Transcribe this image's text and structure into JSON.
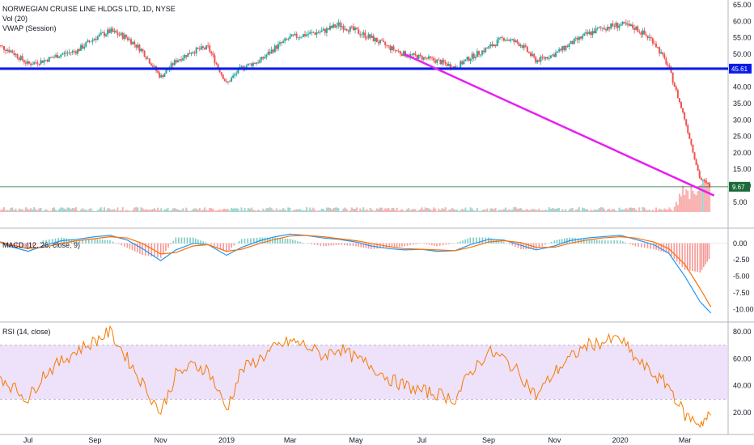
{
  "price_panel": {
    "title": "NORWEGIAN CRUISE LINE HLDGS LTD, 1D, NYSE",
    "vol_label": "Vol (20)",
    "vwap_label": "VWAP (Session)",
    "level_badge": "45.61",
    "last_badge": "9.67"
  },
  "macd_panel": {
    "label": "MACD (12, 26, close, 9)"
  },
  "rsi_panel": {
    "label": "RSI (14, close)"
  },
  "colors": {
    "up": "#26a69a",
    "down": "#ef5350",
    "hline": "#0a1ae6",
    "trendline": "#e91ef2",
    "macd": "#2196f3",
    "signal": "#ff6d00",
    "rsi": "#f57c00",
    "rsi_band": "#e7d4f8",
    "last_line": "#1b6b3a"
  },
  "chart_data": [
    {
      "type": "candlestick",
      "title": "NORWEGIAN CRUISE LINE HLDGS LTD, 1D, NYSE",
      "x_ticks": [
        "Jul",
        "Sep",
        "Nov",
        "2019",
        "Mar",
        "May",
        "Jul",
        "Sep",
        "Nov",
        "2020",
        "Mar"
      ],
      "y_ticks": [
        5,
        10,
        15,
        20,
        25,
        30,
        35,
        40,
        45,
        50,
        55,
        60,
        65
      ],
      "ylim": [
        2,
        66
      ],
      "close_series": {
        "x": [
          "2018-06-01",
          "2018-06-15",
          "2018-07-01",
          "2018-07-15",
          "2018-08-01",
          "2018-08-15",
          "2018-09-01",
          "2018-09-15",
          "2018-10-01",
          "2018-10-15",
          "2018-11-01",
          "2018-11-15",
          "2018-12-01",
          "2018-12-15",
          "2019-01-01",
          "2019-01-15",
          "2019-02-01",
          "2019-02-15",
          "2019-03-01",
          "2019-03-15",
          "2019-04-01",
          "2019-04-15",
          "2019-05-01",
          "2019-05-15",
          "2019-06-01",
          "2019-06-15",
          "2019-07-01",
          "2019-07-15",
          "2019-08-01",
          "2019-08-15",
          "2019-09-01",
          "2019-09-15",
          "2019-10-01",
          "2019-10-15",
          "2019-11-01",
          "2019-11-15",
          "2019-12-01",
          "2019-12-15",
          "2020-01-01",
          "2020-01-15",
          "2020-02-01",
          "2020-02-15",
          "2020-03-01",
          "2020-03-15",
          "2020-03-25"
        ],
        "values": [
          53,
          51,
          47,
          48,
          50,
          51,
          55,
          57,
          55,
          51,
          43,
          48,
          51,
          52,
          41,
          46,
          48,
          52,
          55,
          56,
          57,
          59,
          57,
          55,
          52,
          50,
          49,
          48,
          46,
          49,
          52,
          55,
          53,
          48,
          50,
          53,
          56,
          58,
          59,
          58,
          54,
          46,
          30,
          12,
          9.67
        ]
      },
      "horizontal_level": 45.61,
      "last_price": 9.67,
      "trendline": {
        "start": [
          "2019-06-15",
          50
        ],
        "end": [
          "2020-03-28",
          7
        ]
      }
    },
    {
      "type": "bar",
      "title": "Vol (20)",
      "note": "volume bars at base of price panel, spike in March 2020"
    },
    {
      "type": "line",
      "title": "MACD (12, 26, close, 9)",
      "y_ticks": [
        0.0,
        -2.5,
        -5.0,
        -7.5,
        -10.0
      ],
      "ylim": [
        -11.5,
        1.8
      ],
      "x": [
        "2018-06-01",
        "2018-06-15",
        "2018-07-01",
        "2018-07-15",
        "2018-08-01",
        "2018-08-15",
        "2018-09-01",
        "2018-09-15",
        "2018-10-01",
        "2018-10-15",
        "2018-11-01",
        "2018-11-15",
        "2018-12-01",
        "2018-12-15",
        "2019-01-01",
        "2019-01-15",
        "2019-02-01",
        "2019-02-15",
        "2019-03-01",
        "2019-03-15",
        "2019-04-01",
        "2019-04-15",
        "2019-05-01",
        "2019-05-15",
        "2019-06-01",
        "2019-06-15",
        "2019-07-01",
        "2019-07-15",
        "2019-08-01",
        "2019-08-15",
        "2019-09-01",
        "2019-09-15",
        "2019-10-01",
        "2019-10-15",
        "2019-11-01",
        "2019-11-15",
        "2019-12-01",
        "2019-12-15",
        "2020-01-01",
        "2020-01-15",
        "2020-02-01",
        "2020-02-15",
        "2020-03-01",
        "2020-03-15",
        "2020-03-25"
      ],
      "series": [
        {
          "name": "MACD",
          "values": [
            0.5,
            -0.5,
            -1.2,
            -0.4,
            0.4,
            0.6,
            1.0,
            1.2,
            0.5,
            -0.8,
            -2.6,
            -1.0,
            0.0,
            -0.2,
            -1.8,
            -0.6,
            0.4,
            1.0,
            1.4,
            1.2,
            0.8,
            0.6,
            0.2,
            -0.4,
            -0.8,
            -1.0,
            -0.9,
            -1.2,
            -1.1,
            -0.2,
            0.6,
            0.5,
            -0.3,
            -1.0,
            -0.4,
            0.4,
            0.8,
            1.0,
            1.2,
            0.6,
            -0.2,
            -1.5,
            -5.0,
            -8.8,
            -10.5
          ]
        },
        {
          "name": "Signal",
          "values": [
            0.4,
            -0.2,
            -0.8,
            -0.6,
            0.0,
            0.4,
            0.7,
            1.0,
            0.8,
            0.0,
            -1.6,
            -1.4,
            -0.4,
            -0.2,
            -1.2,
            -0.9,
            0.0,
            0.6,
            1.1,
            1.2,
            1.0,
            0.7,
            0.4,
            0.0,
            -0.5,
            -0.8,
            -0.9,
            -1.0,
            -1.1,
            -0.6,
            0.2,
            0.4,
            0.1,
            -0.6,
            -0.6,
            0.0,
            0.5,
            0.8,
            1.0,
            0.8,
            0.2,
            -0.8,
            -3.2,
            -6.8,
            -9.6
          ]
        }
      ]
    },
    {
      "type": "line",
      "title": "RSI (14, close)",
      "y_ticks": [
        20.0,
        40.0,
        60.0,
        80.0
      ],
      "ylim": [
        5,
        86
      ],
      "band": [
        30,
        70
      ],
      "x": [
        "2018-06-01",
        "2018-06-15",
        "2018-07-01",
        "2018-07-15",
        "2018-08-01",
        "2018-08-15",
        "2018-09-01",
        "2018-09-15",
        "2018-10-01",
        "2018-10-15",
        "2018-11-01",
        "2018-11-15",
        "2018-12-01",
        "2018-12-15",
        "2019-01-01",
        "2019-01-15",
        "2019-02-01",
        "2019-02-15",
        "2019-03-01",
        "2019-03-15",
        "2019-04-01",
        "2019-04-15",
        "2019-05-01",
        "2019-05-15",
        "2019-06-01",
        "2019-06-15",
        "2019-07-01",
        "2019-07-15",
        "2019-08-01",
        "2019-08-15",
        "2019-09-01",
        "2019-09-15",
        "2019-10-01",
        "2019-10-15",
        "2019-11-01",
        "2019-11-15",
        "2019-12-01",
        "2019-12-15",
        "2020-01-01",
        "2020-01-15",
        "2020-02-01",
        "2020-02-15",
        "2020-03-01",
        "2020-03-15",
        "2020-03-25"
      ],
      "values": [
        50,
        40,
        30,
        48,
        58,
        66,
        73,
        80,
        60,
        42,
        20,
        48,
        55,
        52,
        22,
        52,
        60,
        68,
        73,
        70,
        62,
        68,
        60,
        55,
        45,
        40,
        36,
        34,
        30,
        50,
        65,
        60,
        48,
        32,
        50,
        60,
        70,
        72,
        75,
        60,
        48,
        40,
        18,
        12,
        18
      ]
    }
  ]
}
